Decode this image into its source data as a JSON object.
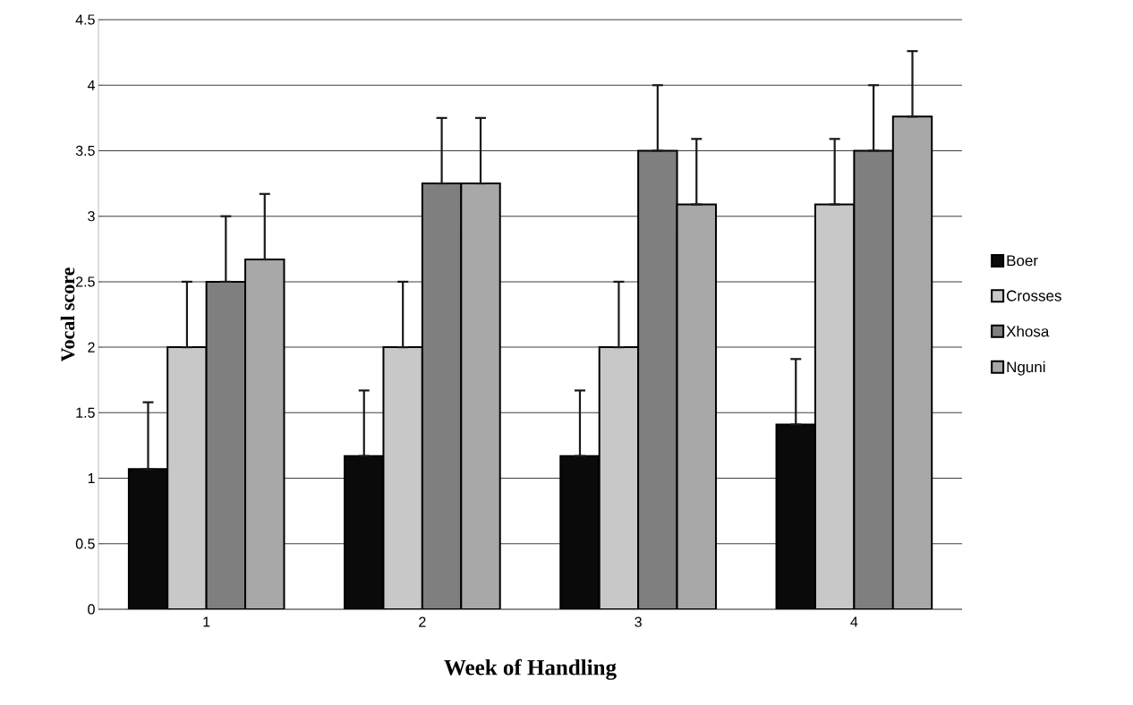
{
  "chart_data": {
    "type": "bar",
    "xlabel": "Week of Handling",
    "ylabel": "Vocal score",
    "categories": [
      "1",
      "2",
      "3",
      "4"
    ],
    "series": [
      {
        "name": "Boer",
        "color": "#0a0a0a",
        "values": [
          1.07,
          1.17,
          1.17,
          1.41
        ],
        "errors": [
          [
            1.07,
            1.58
          ],
          [
            1.17,
            1.67
          ],
          [
            1.17,
            1.67
          ],
          [
            1.41,
            1.91
          ]
        ]
      },
      {
        "name": "Crosses",
        "color": "#c8c8c8",
        "values": [
          2.0,
          2.0,
          2.0,
          3.09
        ],
        "errors": [
          [
            2.0,
            2.5
          ],
          [
            2.0,
            2.5
          ],
          [
            2.0,
            2.5
          ],
          [
            3.09,
            3.59
          ]
        ]
      },
      {
        "name": "Xhosa",
        "color": "#7f7f7f",
        "values": [
          2.5,
          3.25,
          3.5,
          3.5
        ],
        "errors": [
          [
            2.5,
            3.0
          ],
          [
            3.25,
            3.75
          ],
          [
            3.5,
            4.0
          ],
          [
            3.5,
            4.0
          ]
        ]
      },
      {
        "name": "Nguni",
        "color": "#a8a8a8",
        "values": [
          2.67,
          3.25,
          3.09,
          3.76
        ],
        "errors": [
          [
            2.67,
            3.17
          ],
          [
            3.25,
            3.75
          ],
          [
            3.09,
            3.59
          ],
          [
            3.76,
            4.26
          ]
        ]
      }
    ],
    "ylim": [
      0,
      4.5
    ],
    "yticks": [
      0,
      0.5,
      1,
      1.5,
      2,
      2.5,
      3,
      3.5,
      4,
      4.5
    ],
    "grid": "y",
    "legend": "right"
  }
}
